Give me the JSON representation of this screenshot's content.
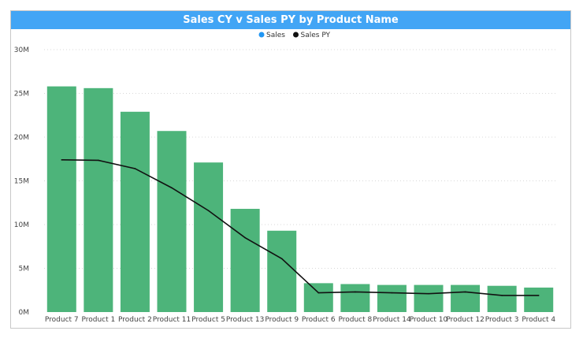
{
  "chart_data": {
    "type": "bar",
    "title": "Sales CY v Sales PY by Product Name",
    "categories": [
      "Product 7",
      "Product 1",
      "Product 2",
      "Product 11",
      "Product 5",
      "Product 13",
      "Product 9",
      "Product 6",
      "Product 8",
      "Product 14",
      "Product 10",
      "Product 12",
      "Product 3",
      "Product 4"
    ],
    "series": [
      {
        "name": "Sales",
        "type": "bar",
        "color": "#4db47a",
        "values": [
          25.8,
          25.6,
          22.9,
          20.7,
          17.1,
          11.8,
          9.3,
          3.3,
          3.2,
          3.1,
          3.1,
          3.1,
          3.0,
          2.8
        ]
      },
      {
        "name": "Sales PY",
        "type": "line",
        "color": "#111111",
        "values": [
          17.4,
          17.35,
          16.4,
          14.2,
          11.6,
          8.5,
          6.1,
          2.2,
          2.3,
          2.2,
          2.1,
          2.3,
          1.9,
          1.9
        ]
      }
    ],
    "ylim": [
      0,
      30
    ],
    "yticks": [
      "0M",
      "5M",
      "10M",
      "15M",
      "20M",
      "25M",
      "30M"
    ],
    "ytick_values": [
      0,
      5,
      10,
      15,
      20,
      25,
      30
    ],
    "grid": true,
    "legend": "top-center"
  }
}
